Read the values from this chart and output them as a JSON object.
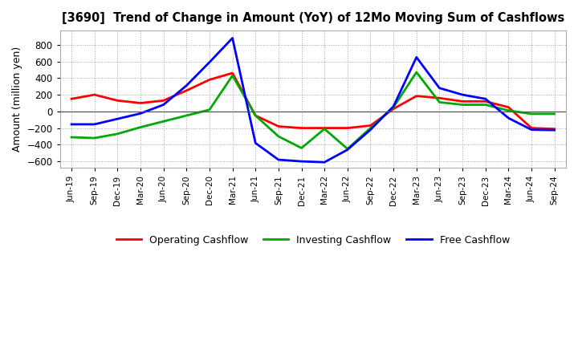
{
  "title": "[3690]  Trend of Change in Amount (YoY) of 12Mo Moving Sum of Cashflows",
  "ylabel": "Amount (million yen)",
  "x_labels": [
    "Jun-19",
    "Sep-19",
    "Dec-19",
    "Mar-20",
    "Jun-20",
    "Sep-20",
    "Dec-20",
    "Mar-21",
    "Jun-21",
    "Sep-21",
    "Dec-21",
    "Mar-22",
    "Jun-22",
    "Sep-22",
    "Dec-22",
    "Mar-23",
    "Jun-23",
    "Sep-23",
    "Dec-23",
    "Mar-24",
    "Jun-24",
    "Sep-24"
  ],
  "operating": [
    150,
    200,
    130,
    100,
    130,
    250,
    380,
    460,
    -50,
    -180,
    -200,
    -200,
    -200,
    -170,
    30,
    185,
    160,
    120,
    120,
    50,
    -200,
    -210
  ],
  "investing": [
    -310,
    -320,
    -270,
    -190,
    -120,
    -50,
    20,
    430,
    -50,
    -300,
    -440,
    -210,
    -450,
    -200,
    50,
    470,
    110,
    80,
    80,
    10,
    -30,
    -30
  ],
  "free": [
    -155,
    -155,
    -90,
    -25,
    80,
    310,
    590,
    880,
    -380,
    -580,
    -600,
    -610,
    -460,
    -220,
    60,
    650,
    280,
    200,
    150,
    -80,
    -220,
    -225
  ],
  "operating_color": "#ff0000",
  "investing_color": "#00aa00",
  "free_color": "#0000ff",
  "bg_color": "#ffffff",
  "plot_bg_color": "#ffffff",
  "grid_color": "#999999",
  "ylim": [
    -680,
    970
  ],
  "yticks": [
    -600,
    -400,
    -200,
    0,
    200,
    400,
    600,
    800
  ],
  "legend_labels": [
    "Operating Cashflow",
    "Investing Cashflow",
    "Free Cashflow"
  ]
}
